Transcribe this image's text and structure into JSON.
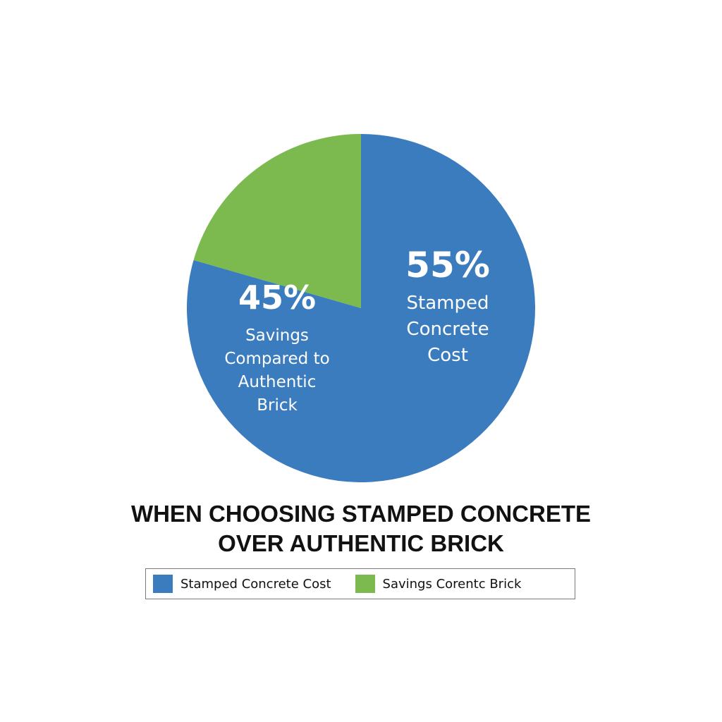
{
  "chart_data": {
    "type": "pie",
    "title_lines": [
      "WHEN CHOOSING STAMPED CONCRETE",
      "OVER AUTHENTIC BRICK"
    ],
    "slices": [
      {
        "label_pct": "55%",
        "label_lines": [
          "Stamped",
          "Concrete",
          "Cost"
        ],
        "value": 55,
        "color": "#3b7cbf"
      },
      {
        "label_pct": "45%",
        "label_lines": [
          "Savings",
          "Compared to",
          "Authentic",
          "Brick"
        ],
        "value": 45,
        "color": "#7cb94f"
      }
    ],
    "legend": {
      "placement": "bottom",
      "entries": [
        {
          "label": "Stamped Concrete Cost",
          "color": "#3b7cbf"
        },
        {
          "label": "Savings Corentc Brick",
          "color": "#7cb94f"
        }
      ]
    }
  }
}
